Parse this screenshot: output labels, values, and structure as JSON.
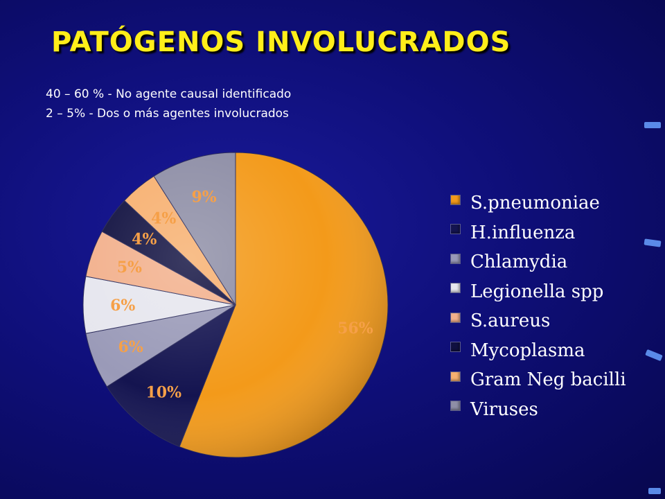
{
  "slide": {
    "title": "PATÓGENOS INVOLUCRADOS",
    "notes": [
      "40 – 60 %  -  No agente causal identificado",
      "2 – 5% -  Dos o más agentes involucrados"
    ]
  },
  "chart_data": {
    "type": "pie",
    "title": "",
    "categories": [
      "S.pneumoniae",
      "H.influenza",
      "Chlamydia",
      "Legionella spp",
      "S.aureus",
      "Mycoplasma",
      "Gram Neg bacilli",
      "Viruses"
    ],
    "values": [
      56,
      10,
      6,
      6,
      5,
      4,
      4,
      9
    ],
    "data_labels": [
      "56%",
      "10%",
      "6%",
      "6%",
      "5%",
      "4%",
      "4%",
      "9%"
    ],
    "colors": [
      "#f39a1a",
      "#141450",
      "#9a9ab8",
      "#e6e6ee",
      "#f2b08c",
      "#101040",
      "#f7b070",
      "#8e8ea6"
    ],
    "label_colors": [
      "#f6a048",
      "#f6a048",
      "#f6a048",
      "#f6a048",
      "#f6a048",
      "#f6a048",
      "#f6a048",
      "#f6a048"
    ],
    "start_angle_deg": 0,
    "direction": "clockwise",
    "legend_position": "right"
  }
}
